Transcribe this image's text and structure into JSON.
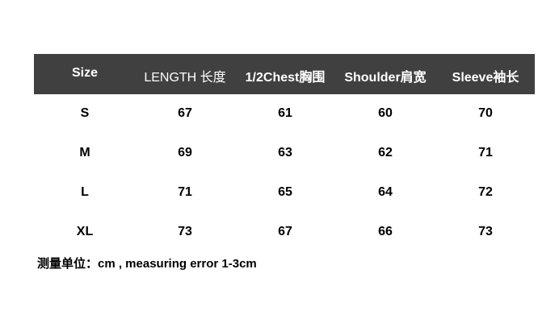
{
  "table": {
    "headers": [
      "Size",
      "LENGTH 长度",
      "1/2Chest胸围",
      "Shoulder肩宽",
      "Sleeve袖长"
    ],
    "rows": [
      [
        "S",
        "67",
        "61",
        "60",
        "70"
      ],
      [
        "M",
        "69",
        "63",
        "62",
        "71"
      ],
      [
        "L",
        "71",
        "65",
        "64",
        "72"
      ],
      [
        "XL",
        "73",
        "67",
        "66",
        "73"
      ]
    ],
    "header_bg": "#404040"
  },
  "note": "测量单位：cm , measuring error 1-3cm"
}
